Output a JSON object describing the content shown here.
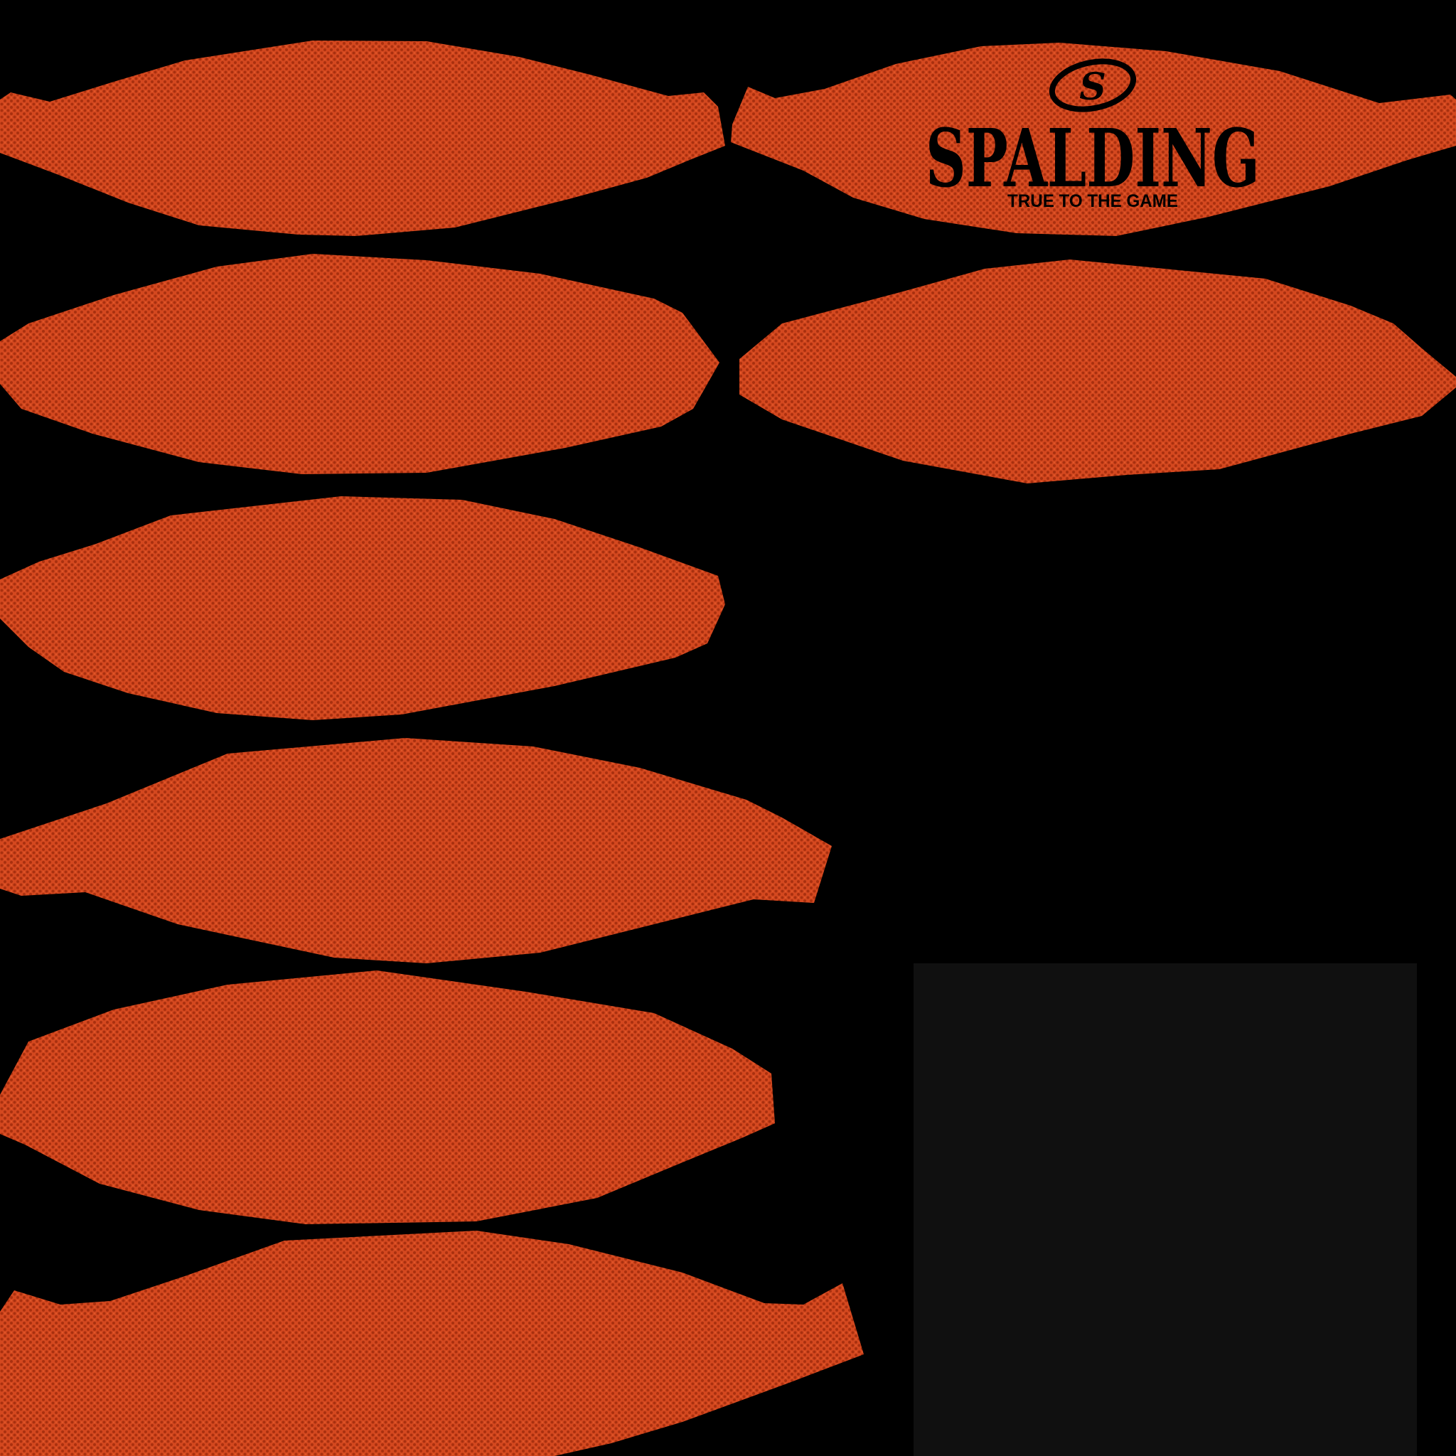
{
  "texture": {
    "background_color": "#000000",
    "leather_base_color": "#d4481f",
    "leather_pebble_color": "#a9300f",
    "leather_highlight_color": "#e8622f",
    "swatch_color": "#101010"
  },
  "logo": {
    "emblem_letter": "S",
    "brand": "SPALDING",
    "tagline": "TRUE TO THE GAME",
    "ink_color": "#000000"
  }
}
